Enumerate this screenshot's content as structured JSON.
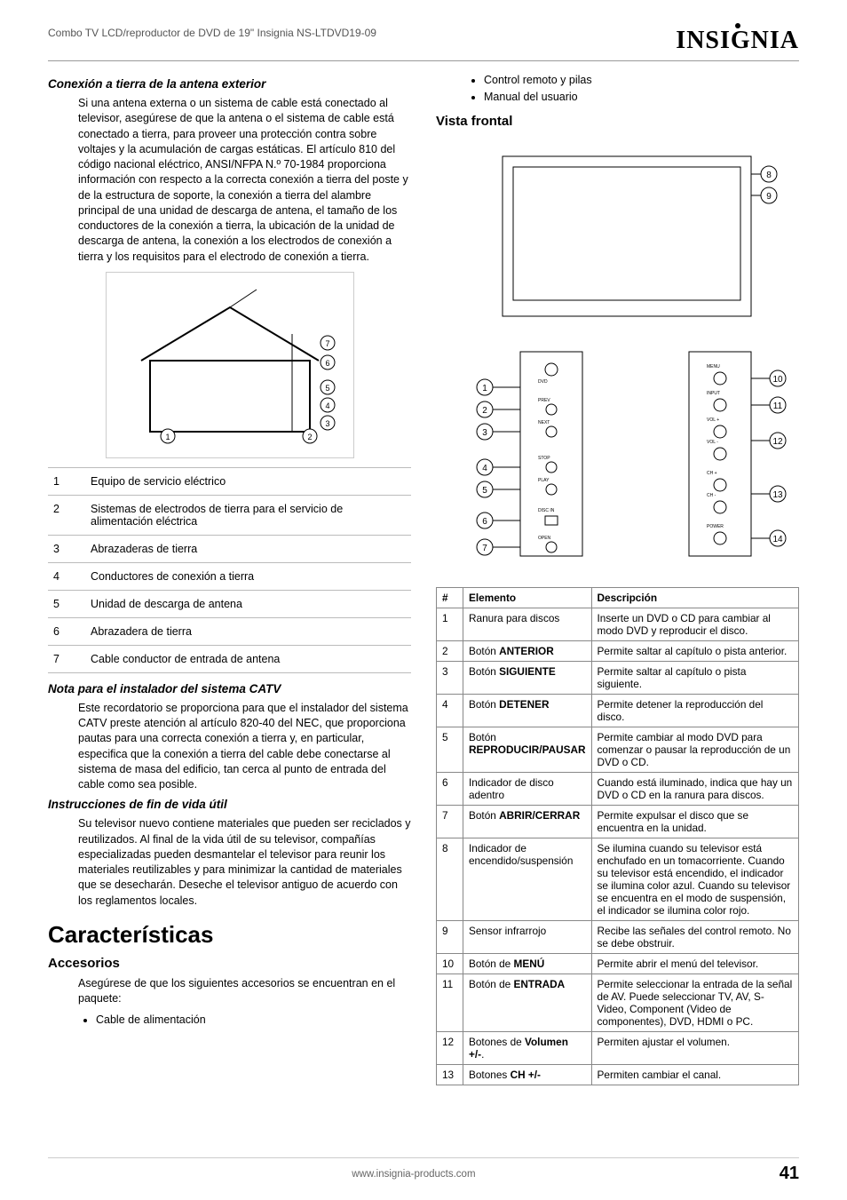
{
  "header": {
    "product_line": "Combo TV LCD/reproductor de DVD de 19\" Insignia NS-LTDVD19-09",
    "brand": "INSIGNIA"
  },
  "left": {
    "h_antenna": "Conexión a tierra de la antena exterior",
    "p_antenna": "Si una antena externa o un sistema de cable está conectado al televisor, asegúrese de que la antena o el sistema de cable está conectado a tierra, para proveer una protección contra sobre voltajes y la acumulación de cargas estáticas. El artículo 810 del código nacional eléctrico, ANSI/NFPA N.º 70-1984 proporciona información con respecto a la correcta conexión a tierra del poste y de la estructura de soporte, la conexión a tierra del alambre principal de una unidad de descarga de antena, el tamaño de los conductores de la conexión a tierra, la ubicación de la unidad de descarga de antena, la conexión a los electrodos de conexión a tierra y los requisitos para el electrodo de conexión a tierra.",
    "ground_table": [
      [
        "1",
        "Equipo de servicio eléctrico"
      ],
      [
        "2",
        "Sistemas de electrodos de tierra para el servicio de alimentación eléctrica"
      ],
      [
        "3",
        "Abrazaderas de tierra"
      ],
      [
        "4",
        "Conductores de conexión a tierra"
      ],
      [
        "5",
        "Unidad de descarga de antena"
      ],
      [
        "6",
        "Abrazadera de tierra"
      ],
      [
        "7",
        "Cable conductor de entrada de antena"
      ]
    ],
    "h_catv": "Nota para el instalador del sistema CATV",
    "p_catv": "Este recordatorio se proporciona para que el instalador del sistema CATV preste atención al artículo 820-40 del NEC, que proporciona pautas para una correcta conexión a tierra y, en particular, especifica que la conexión a tierra del cable debe conectarse al sistema de masa del edificio, tan cerca al punto de entrada del cable como sea posible.",
    "h_eol": "Instrucciones de fin de vida útil",
    "p_eol": "Su televisor nuevo contiene materiales que pueden ser reciclados y reutilizados. Al final de la vida útil de su televisor, compañías especializadas pueden desmantelar el televisor para reunir los materiales reutilizables y para minimizar la cantidad de materiales que se desecharán. Deseche el televisor antiguo de acuerdo con los reglamentos locales.",
    "h_caract": "Características",
    "h_acces": "Accesorios",
    "p_acces": "Asegúrese de que los siguientes accesorios se encuentran en el paquete:",
    "acces_items": [
      "Cable de alimentación"
    ]
  },
  "right": {
    "acces_cont": [
      "Control remoto y pilas",
      "Manual del usuario"
    ],
    "h_vista": "Vista frontal",
    "front_headers": [
      "#",
      "Elemento",
      "Descripción"
    ],
    "front_rows": [
      {
        "n": "1",
        "elem_pre": "Ranura para discos",
        "elem_bold": "",
        "desc": "Inserte un DVD o CD para cambiar al modo DVD y reproducir el disco."
      },
      {
        "n": "2",
        "elem_pre": "Botón ",
        "elem_bold": "ANTERIOR",
        "desc": "Permite saltar al capítulo o pista anterior."
      },
      {
        "n": "3",
        "elem_pre": "Botón ",
        "elem_bold": "SIGUIENTE",
        "desc": "Permite saltar al capítulo o pista siguiente."
      },
      {
        "n": "4",
        "elem_pre": "Botón ",
        "elem_bold": "DETENER",
        "desc": "Permite detener la reproducción del disco."
      },
      {
        "n": "5",
        "elem_pre": "Botón ",
        "elem_bold": "REPRODUCIR/PAUSAR",
        "desc": "Permite cambiar al modo DVD para comenzar o pausar la reproducción de un DVD o CD."
      },
      {
        "n": "6",
        "elem_pre": "Indicador de disco adentro",
        "elem_bold": "",
        "desc": "Cuando está iluminado, indica que hay un DVD o CD en la ranura para discos."
      },
      {
        "n": "7",
        "elem_pre": "Botón ",
        "elem_bold": "ABRIR/CERRAR",
        "desc": "Permite expulsar el disco que se encuentra en la unidad."
      },
      {
        "n": "8",
        "elem_pre": "Indicador de encendido/suspensión",
        "elem_bold": "",
        "desc": "Se ilumina cuando su televisor está enchufado en un tomacorriente. Cuando su televisor está encendido, el indicador se ilumina color azul. Cuando su televisor se encuentra en el modo de suspensión, el indicador se ilumina color rojo."
      },
      {
        "n": "9",
        "elem_pre": "Sensor infrarrojo",
        "elem_bold": "",
        "desc": "Recibe las señales del control remoto. No se debe obstruir."
      },
      {
        "n": "10",
        "elem_pre": "Botón de ",
        "elem_bold": "MENÚ",
        "desc": "Permite abrir el menú del televisor."
      },
      {
        "n": "11",
        "elem_pre": "Botón de ",
        "elem_bold": "ENTRADA",
        "desc": "Permite seleccionar la entrada de la señal de AV. Puede seleccionar TV, AV, S-Video, Component (Video de componentes), DVD, HDMI o PC."
      },
      {
        "n": "12",
        "elem_pre": "Botones de ",
        "elem_bold": "Volumen +/-",
        "elem_post": ".",
        "desc": "Permiten ajustar el volumen."
      },
      {
        "n": "13",
        "elem_pre": "Botones ",
        "elem_bold": "CH +/-",
        "desc": "Permiten cambiar el canal."
      }
    ]
  },
  "footer": {
    "url": "www.insignia-products.com",
    "page": "41"
  },
  "colors": {
    "text": "#000000",
    "muted": "#555555",
    "border": "#888888",
    "light_border": "#bbbbbb"
  }
}
